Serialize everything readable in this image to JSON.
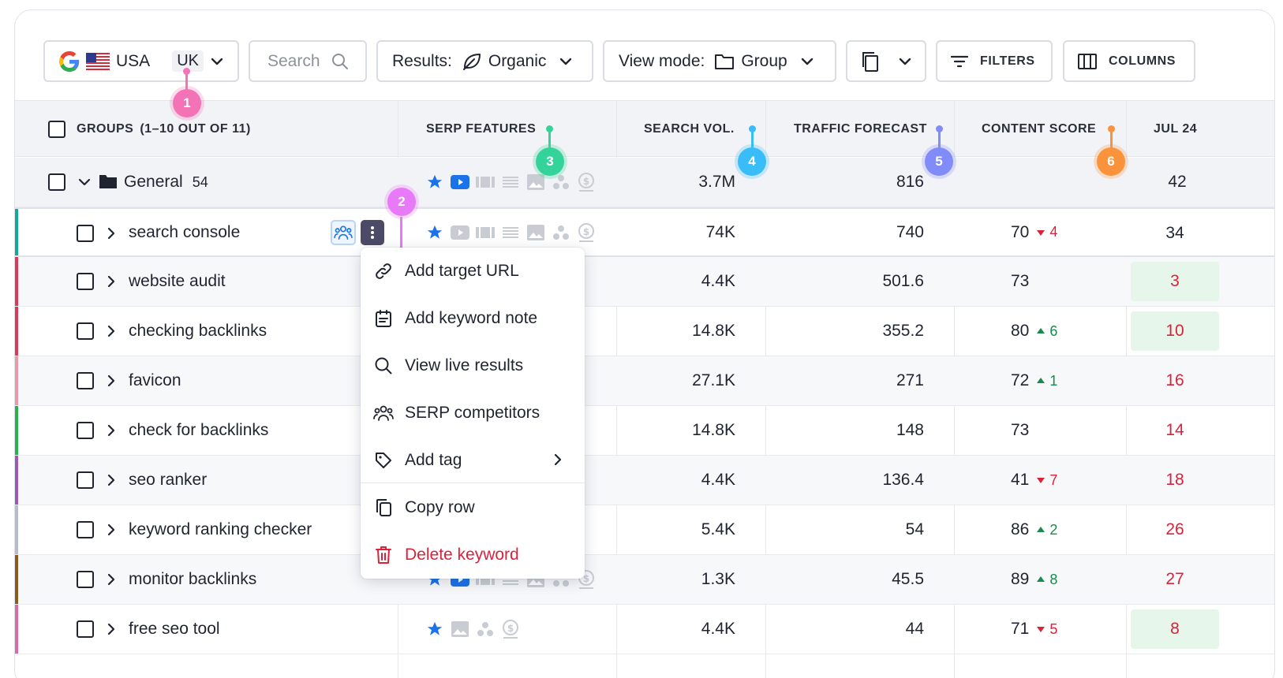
{
  "toolbar": {
    "country": "USA",
    "region": "UK",
    "search_placeholder": "Search",
    "results_label": "Results:",
    "results_value": "Organic",
    "viewmode_label": "View mode:",
    "viewmode_value": "Group",
    "filters_label": "FILTERS",
    "columns_label": "COLUMNS"
  },
  "columns": {
    "groups": "GROUPS",
    "groups_count": "(1–10 OUT OF 11)",
    "serp": "SERP FEATURES",
    "volume": "SEARCH  VOL.",
    "traffic": "TRAFFIC FORECAST",
    "content": "CONTENT SCORE",
    "jul": "JUL 24"
  },
  "markers": [
    "1",
    "2",
    "3",
    "4",
    "5",
    "6"
  ],
  "group_row": {
    "name": "General",
    "count": "54",
    "volume": "3.7M",
    "traffic": "816",
    "jul": "42"
  },
  "rows": [
    {
      "keyword": "search console",
      "volume": "74K",
      "traffic": "740",
      "score": "70",
      "delta": "4",
      "dir": "down",
      "jul": "34"
    },
    {
      "keyword": "website audit",
      "volume": "4.4K",
      "traffic": "501.6",
      "score": "73",
      "delta": "",
      "dir": "",
      "jul": "3"
    },
    {
      "keyword": "checking backlinks",
      "volume": "14.8K",
      "traffic": "355.2",
      "score": "80",
      "delta": "6",
      "dir": "up",
      "jul": "10"
    },
    {
      "keyword": "favicon",
      "volume": "27.1K",
      "traffic": "271",
      "score": "72",
      "delta": "1",
      "dir": "up",
      "jul": "16"
    },
    {
      "keyword": "check for backlinks",
      "volume": "14.8K",
      "traffic": "148",
      "score": "73",
      "delta": "",
      "dir": "",
      "jul": "14"
    },
    {
      "keyword": "seo ranker",
      "volume": "4.4K",
      "traffic": "136.4",
      "score": "41",
      "delta": "7",
      "dir": "down",
      "jul": "18"
    },
    {
      "keyword": "keyword ranking checker",
      "volume": "5.4K",
      "traffic": "54",
      "score": "86",
      "delta": "2",
      "dir": "up",
      "jul": "26"
    },
    {
      "keyword": "monitor backlinks",
      "volume": "1.3K",
      "traffic": "45.5",
      "score": "89",
      "delta": "8",
      "dir": "up",
      "jul": "27"
    },
    {
      "keyword": "free seo tool",
      "volume": "4.4K",
      "traffic": "44",
      "score": "71",
      "delta": "5",
      "dir": "down",
      "jul": "8"
    }
  ],
  "menu": {
    "add_target_url": "Add target URL",
    "add_keyword_note": "Add keyword note",
    "view_live_results": "View live results",
    "serp_competitors": "SERP competitors",
    "add_tag": "Add tag",
    "copy_row": "Copy row",
    "delete_keyword": "Delete keyword"
  },
  "colors": {
    "accent_blue": "#1a73e8",
    "danger": "#d9233a",
    "positive": "#1a8a4c",
    "marker_1": "#f472b6",
    "marker_2": "#e879f9",
    "marker_3": "#34d399",
    "marker_4": "#38bdf8",
    "marker_5": "#818cf8",
    "marker_6": "#fb923c"
  }
}
